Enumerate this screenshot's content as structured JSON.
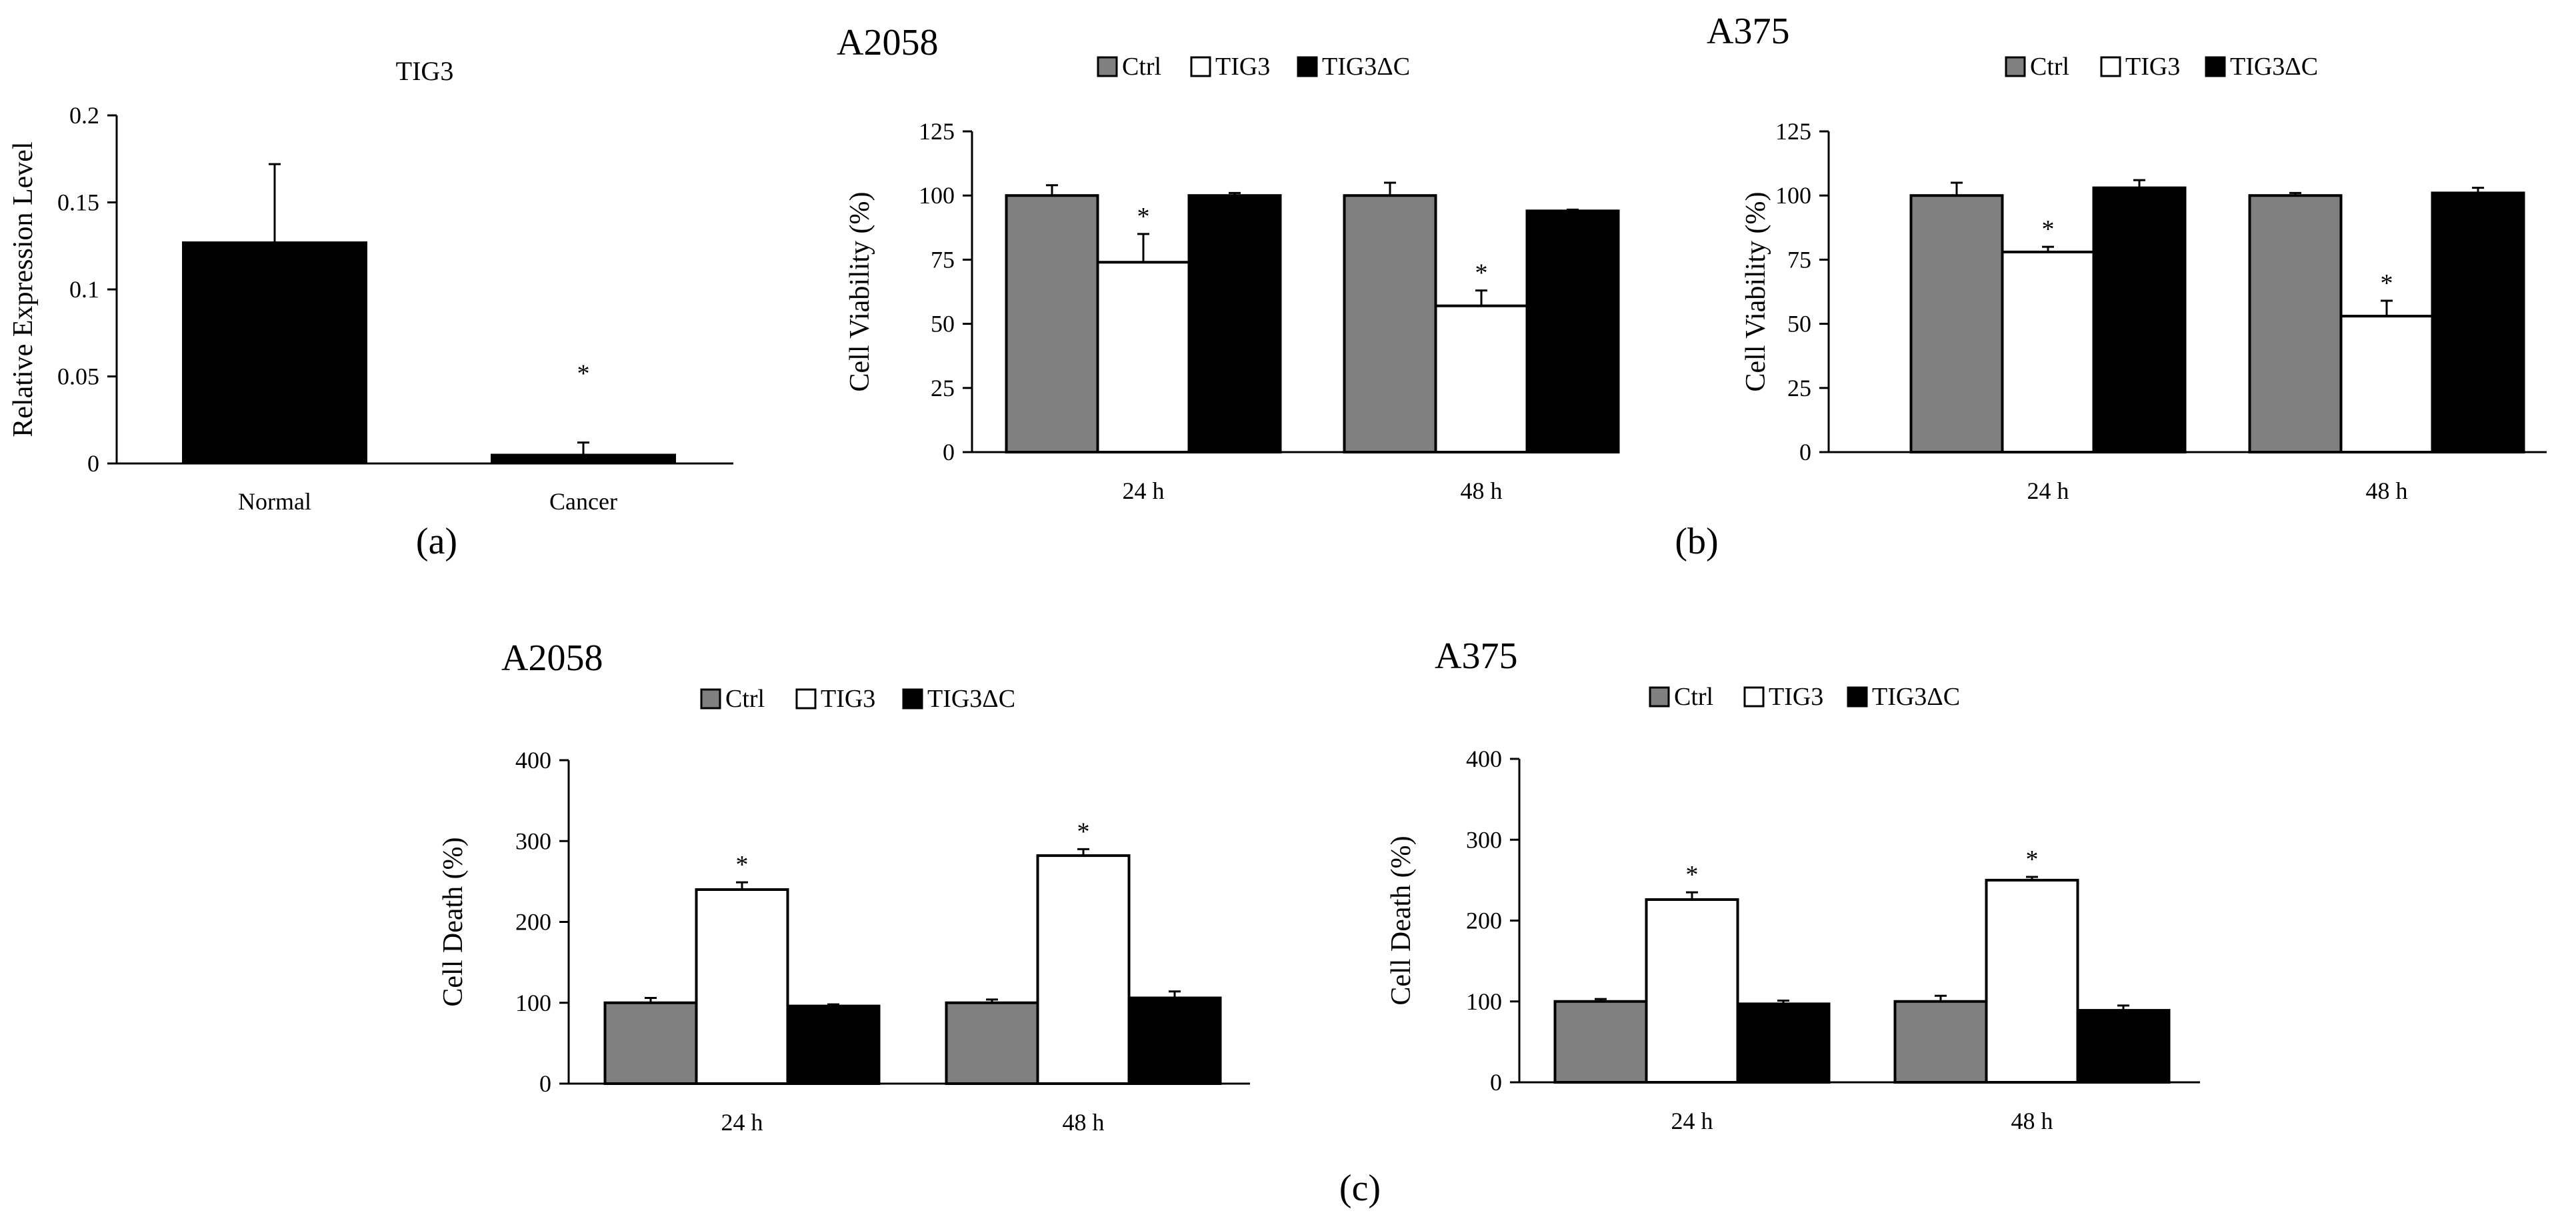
{
  "chart_data": [
    {
      "id": "a",
      "type": "bar",
      "panel_label": "(a)",
      "title": "TIG3",
      "ylabel": "Relative Expression Level",
      "xlabel": "",
      "categories": [
        "Normal",
        "Cancer"
      ],
      "values": [
        0.127,
        0.005
      ],
      "errors": [
        0.045,
        0.007
      ],
      "significance": [
        "",
        "*"
      ],
      "ylim": [
        0,
        0.2
      ],
      "yticks": [
        0,
        0.05,
        0.1,
        0.15,
        0.2
      ],
      "ytick_labels": [
        "0",
        "0.05",
        "0.1",
        "0.15",
        "0.2"
      ],
      "color": "#000000"
    },
    {
      "id": "b1",
      "type": "bar",
      "panel_label": "",
      "title": "A2058",
      "ylabel": "Cell Viability  (%)",
      "xlabel": "",
      "categories": [
        "24 h",
        "48 h"
      ],
      "legend": [
        "Ctrl",
        "TIG3",
        "TIG3ΔC"
      ],
      "series": [
        {
          "name": "Ctrl",
          "color": "#808080",
          "values": [
            100,
            100
          ],
          "errors": [
            4,
            5
          ],
          "significance": [
            "",
            ""
          ]
        },
        {
          "name": "TIG3",
          "color": "#ffffff",
          "values": [
            74,
            57
          ],
          "errors": [
            11,
            6
          ],
          "significance": [
            "*",
            "*"
          ]
        },
        {
          "name": "TIG3ΔC",
          "color": "#000000",
          "values": [
            100,
            94
          ],
          "errors": [
            1,
            0.5
          ],
          "significance": [
            "",
            ""
          ]
        }
      ],
      "ylim": [
        0,
        125
      ],
      "yticks": [
        0,
        25,
        50,
        75,
        100,
        125
      ],
      "ytick_labels": [
        "0",
        "25",
        "50",
        "75",
        "100",
        "125"
      ]
    },
    {
      "id": "b2",
      "type": "bar",
      "panel_label": "(b)",
      "title": "A375",
      "ylabel": "Cell Viability  (%)",
      "xlabel": "",
      "categories": [
        "24 h",
        "48 h"
      ],
      "legend": [
        "Ctrl",
        "TIG3",
        "TIG3ΔC"
      ],
      "series": [
        {
          "name": "Ctrl",
          "color": "#808080",
          "values": [
            100,
            100
          ],
          "errors": [
            5,
            1
          ],
          "significance": [
            "",
            ""
          ]
        },
        {
          "name": "TIG3",
          "color": "#ffffff",
          "values": [
            78,
            53
          ],
          "errors": [
            2,
            6
          ],
          "significance": [
            "*",
            "*"
          ]
        },
        {
          "name": "TIG3ΔC",
          "color": "#000000",
          "values": [
            103,
            101
          ],
          "errors": [
            3,
            2
          ],
          "significance": [
            "",
            ""
          ]
        }
      ],
      "ylim": [
        0,
        125
      ],
      "yticks": [
        0,
        25,
        50,
        75,
        100,
        125
      ],
      "ytick_labels": [
        "0",
        "25",
        "50",
        "75",
        "100",
        "125"
      ]
    },
    {
      "id": "c1",
      "type": "bar",
      "panel_label": "",
      "title": "A2058",
      "ylabel": "Cell Death (%)",
      "xlabel": "",
      "categories": [
        "24 h",
        "48 h"
      ],
      "legend": [
        "Ctrl",
        "TIG3",
        "TIG3ΔC"
      ],
      "series": [
        {
          "name": "Ctrl",
          "color": "#808080",
          "values": [
            100,
            100
          ],
          "errors": [
            6,
            4
          ],
          "significance": [
            "",
            ""
          ]
        },
        {
          "name": "TIG3",
          "color": "#ffffff",
          "values": [
            240,
            282
          ],
          "errors": [
            9,
            8
          ],
          "significance": [
            "*",
            "*"
          ]
        },
        {
          "name": "TIG3ΔC",
          "color": "#000000",
          "values": [
            96,
            106
          ],
          "errors": [
            2,
            8
          ],
          "significance": [
            "",
            ""
          ]
        }
      ],
      "ylim": [
        0,
        400
      ],
      "yticks": [
        0,
        100,
        200,
        300,
        400
      ],
      "ytick_labels": [
        "0",
        "100",
        "200",
        "300",
        "400"
      ]
    },
    {
      "id": "c2",
      "type": "bar",
      "panel_label": "",
      "title": "A375",
      "ylabel": "Cell Death (%)",
      "xlabel": "",
      "categories": [
        "24 h",
        "48 h"
      ],
      "legend": [
        "Ctrl",
        "TIG3",
        "TIG3ΔC"
      ],
      "series": [
        {
          "name": "Ctrl",
          "color": "#808080",
          "values": [
            100,
            100
          ],
          "errors": [
            3,
            7
          ],
          "significance": [
            "",
            ""
          ]
        },
        {
          "name": "TIG3",
          "color": "#ffffff",
          "values": [
            226,
            250
          ],
          "errors": [
            9,
            4
          ],
          "significance": [
            "*",
            "*"
          ]
        },
        {
          "name": "TIG3ΔC",
          "color": "#000000",
          "values": [
            97,
            89
          ],
          "errors": [
            4,
            6
          ],
          "significance": [
            "",
            ""
          ]
        }
      ],
      "ylim": [
        0,
        400
      ],
      "yticks": [
        0,
        100,
        200,
        300,
        400
      ],
      "ytick_labels": [
        "0",
        "100",
        "200",
        "300",
        "400"
      ]
    }
  ],
  "figure": {
    "panel_c_label": "(c)"
  }
}
